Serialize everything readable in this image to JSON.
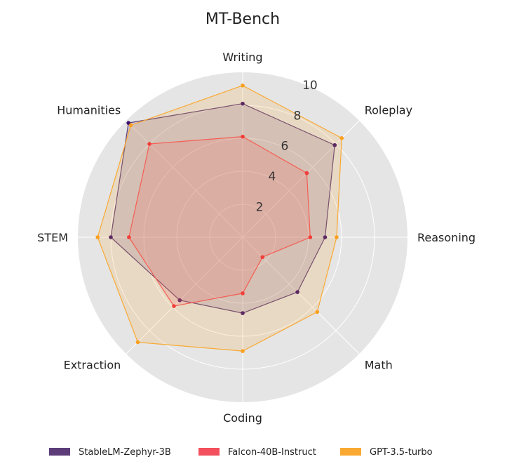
{
  "chart_data": {
    "type": "radar",
    "title": "MT-Bench",
    "categories": [
      "Writing",
      "Roleplay",
      "Reasoning",
      "Math",
      "Coding",
      "Extraction",
      "STEM",
      "Humanities"
    ],
    "radial_ticks": [
      2,
      4,
      6,
      8,
      10
    ],
    "radial_tick_labels": [
      "2",
      "4",
      "6",
      "8",
      "10"
    ],
    "rlim": [
      0,
      10
    ],
    "grid": true,
    "legend_position": "bottom",
    "series": [
      {
        "name": "StableLM-Zephyr-3B",
        "color": "#5c3d7a",
        "marker_color": "#3b0f6f",
        "values": [
          8.1,
          7.9,
          5.0,
          4.7,
          4.6,
          5.4,
          8.0,
          9.8
        ]
      },
      {
        "name": "Falcon-40B-Instruct",
        "color": "#f44f5c",
        "marker_color": "#f0283c",
        "values": [
          6.1,
          5.5,
          4.1,
          1.7,
          3.4,
          5.9,
          6.9,
          8.0
        ]
      },
      {
        "name": "GPT-3.5-turbo",
        "color": "#f9a932",
        "marker_color": "#f9a020",
        "values": [
          9.2,
          8.5,
          5.7,
          6.4,
          6.9,
          9.0,
          8.8,
          9.6
        ]
      }
    ]
  }
}
